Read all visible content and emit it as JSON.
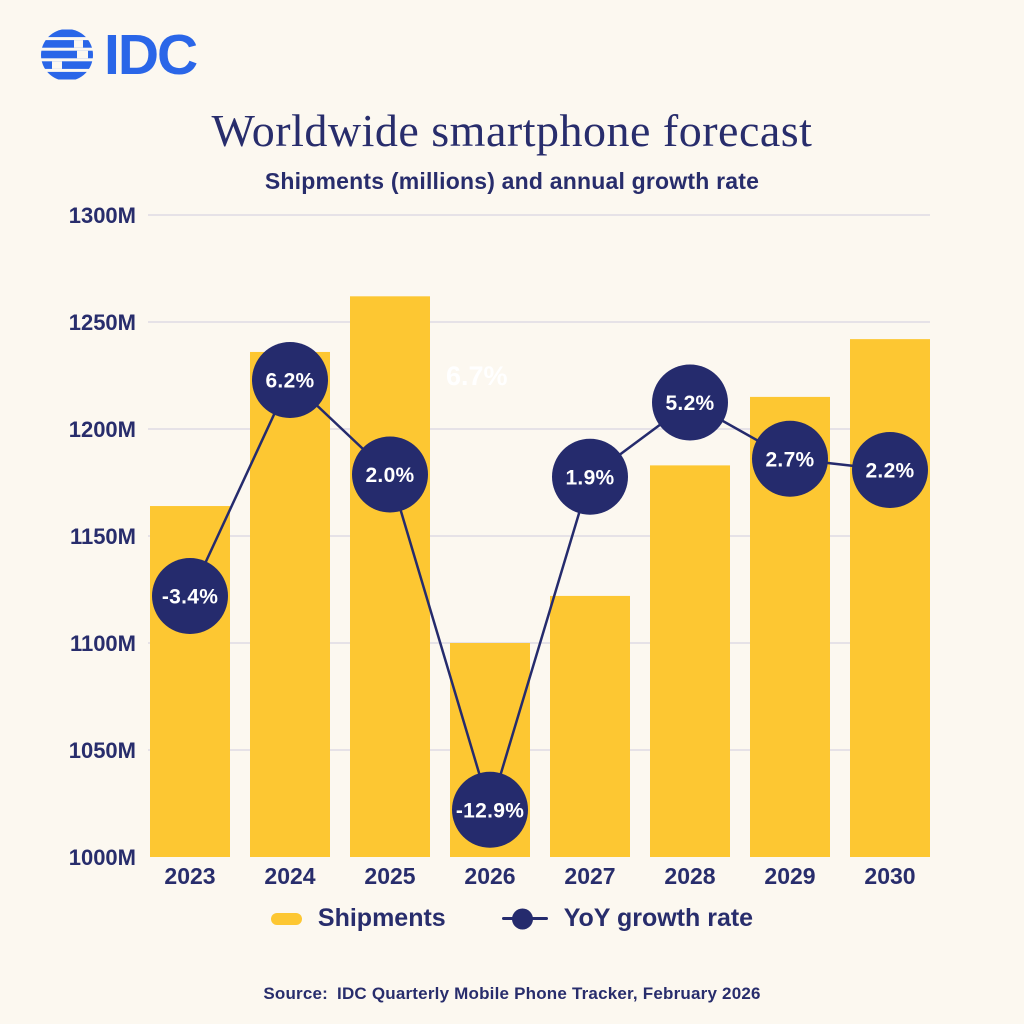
{
  "logo": {
    "text": "IDC",
    "color": "#2A66E8",
    "icon": "striped-globe"
  },
  "header": {
    "title": "Worldwide smartphone forecast",
    "subtitle": "Shipments (millions) and annual growth rate"
  },
  "chart_data": {
    "type": "bar+line",
    "title": "Worldwide smartphone forecast",
    "subtitle": "Shipments (millions) and annual growth rate",
    "categories": [
      "2023",
      "2024",
      "2025",
      "2026",
      "2027",
      "2028",
      "2029",
      "2030"
    ],
    "series": [
      {
        "name": "Shipments",
        "type": "bar",
        "unit": "millions",
        "color": "#FDC732",
        "values": [
          1164,
          1236,
          1262,
          1100,
          1122,
          1183,
          1215,
          1242
        ]
      },
      {
        "name": "YoY growth rate",
        "type": "line",
        "unit": "%",
        "color": "#252B6D",
        "values": [
          -3.4,
          6.2,
          2.0,
          -12.9,
          1.9,
          5.2,
          2.7,
          2.2
        ],
        "labels": [
          "-3.4%",
          "6.2%",
          "2.0%",
          "-12.9%",
          "1.9%",
          "5.2%",
          "2.7%",
          "2.2%"
        ],
        "marker_text_color": "#FFFFFF"
      }
    ],
    "y_axis": {
      "min": 1000,
      "max": 1300,
      "tick_step": 50,
      "tick_labels": [
        "1000M",
        "1050M",
        "1100M",
        "1150M",
        "1200M",
        "1250M",
        "1300M"
      ],
      "grid": true
    },
    "x_axis": {
      "tick_labels": [
        "2023",
        "2024",
        "2025",
        "2026",
        "2027",
        "2028",
        "2029",
        "2030"
      ]
    },
    "legend_position": "bottom",
    "ghost_label": {
      "text": "6.7%",
      "color": "#FFFFFF",
      "near": "right of 2025 bar top"
    }
  },
  "legend": {
    "items": [
      {
        "label": "Shipments",
        "swatch": "bar",
        "color": "#FDC732"
      },
      {
        "label": "YoY growth rate",
        "swatch": "line-dot",
        "color": "#252B6D"
      }
    ]
  },
  "source": {
    "label": "Source:",
    "text": "IDC Quarterly Mobile Phone Tracker, February 2026"
  },
  "colors": {
    "background": "#FCF8F0",
    "navy": "#252B6D",
    "text_navy": "#282D6C",
    "yellow": "#FDC732",
    "gridline": "#DFDAE4",
    "logo_blue": "#2A66E8"
  }
}
